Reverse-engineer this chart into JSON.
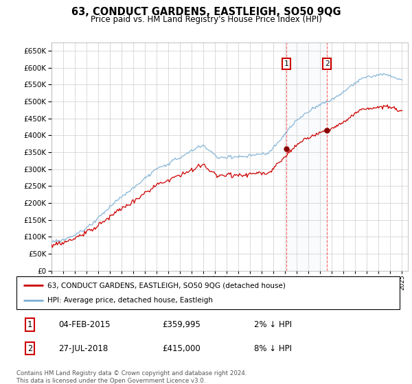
{
  "title": "63, CONDUCT GARDENS, EASTLEIGH, SO50 9QG",
  "subtitle": "Price paid vs. HM Land Registry's House Price Index (HPI)",
  "legend_line1": "63, CONDUCT GARDENS, EASTLEIGH, SO50 9QG (detached house)",
  "legend_line2": "HPI: Average price, detached house, Eastleigh",
  "footnote": "Contains HM Land Registry data © Crown copyright and database right 2024.\nThis data is licensed under the Open Government Licence v3.0.",
  "annotation1_date": "04-FEB-2015",
  "annotation1_price": "£359,995",
  "annotation1_hpi": "2% ↓ HPI",
  "annotation2_date": "27-JUL-2018",
  "annotation2_price": "£415,000",
  "annotation2_hpi": "8% ↓ HPI",
  "price_color": "#cc0000",
  "hpi_color": "#7bafd4",
  "ylim_min": 0,
  "ylim_max": 675000,
  "yticks": [
    0,
    50000,
    100000,
    150000,
    200000,
    250000,
    300000,
    350000,
    400000,
    450000,
    500000,
    550000,
    600000,
    650000
  ],
  "sale1_x": 2015.09,
  "sale1_y": 359995,
  "sale2_x": 2018.57,
  "sale2_y": 415000,
  "xmin": 1995,
  "xmax": 2025.5
}
